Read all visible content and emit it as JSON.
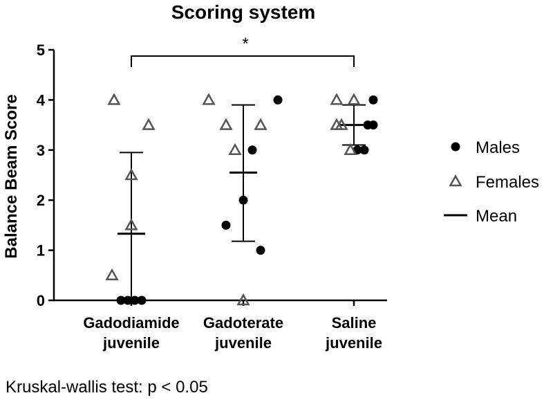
{
  "chart_data": {
    "type": "scatter",
    "title": "Scoring system",
    "ylabel": "Balance Beam Score",
    "ylim": [
      0,
      5
    ],
    "yticks": [
      "0",
      "1",
      "2",
      "3",
      "4",
      "5"
    ],
    "categories": [
      {
        "line1": "Gadodiamide",
        "line2": "juvenile"
      },
      {
        "line1": "Gadoterate",
        "line2": "juvenile"
      },
      {
        "line1": "Saline",
        "line2": "juvenile"
      }
    ],
    "series": [
      {
        "name": "Males",
        "marker": "circle",
        "color": "#000000",
        "points": [
          {
            "group": 0,
            "offset": -0.15,
            "y": 0
          },
          {
            "group": 0,
            "offset": -0.05,
            "y": 0
          },
          {
            "group": 0,
            "offset": 0.05,
            "y": 0
          },
          {
            "group": 0,
            "offset": 0.15,
            "y": 0
          },
          {
            "group": 1,
            "offset": -0.25,
            "y": 1.5
          },
          {
            "group": 1,
            "offset": 0.0,
            "y": 2
          },
          {
            "group": 1,
            "offset": 0.13,
            "y": 3
          },
          {
            "group": 1,
            "offset": 0.25,
            "y": 1
          },
          {
            "group": 1,
            "offset": 0.5,
            "y": 4
          },
          {
            "group": 2,
            "offset": 0.05,
            "y": 3
          },
          {
            "group": 2,
            "offset": 0.15,
            "y": 3
          },
          {
            "group": 2,
            "offset": 0.2,
            "y": 3.5
          },
          {
            "group": 2,
            "offset": 0.28,
            "y": 4
          },
          {
            "group": 2,
            "offset": 0.28,
            "y": 3.5
          }
        ]
      },
      {
        "name": "Females",
        "marker": "triangle",
        "color": "#555555",
        "points": [
          {
            "group": 0,
            "offset": -0.25,
            "y": 4
          },
          {
            "group": 0,
            "offset": 0.25,
            "y": 3.5
          },
          {
            "group": 0,
            "offset": 0.0,
            "y": 2.5
          },
          {
            "group": 0,
            "offset": 0.0,
            "y": 1.5
          },
          {
            "group": 0,
            "offset": -0.28,
            "y": 0.5
          },
          {
            "group": 1,
            "offset": -0.5,
            "y": 4
          },
          {
            "group": 1,
            "offset": -0.25,
            "y": 3.5
          },
          {
            "group": 1,
            "offset": -0.12,
            "y": 3
          },
          {
            "group": 1,
            "offset": 0.25,
            "y": 3.5
          },
          {
            "group": 1,
            "offset": 0.0,
            "y": 0
          },
          {
            "group": 2,
            "offset": -0.25,
            "y": 4
          },
          {
            "group": 2,
            "offset": 0.0,
            "y": 4
          },
          {
            "group": 2,
            "offset": -0.25,
            "y": 3.5
          },
          {
            "group": 2,
            "offset": -0.18,
            "y": 3.5
          },
          {
            "group": 2,
            "offset": -0.05,
            "y": 3
          }
        ]
      }
    ],
    "summary": [
      {
        "group": 0,
        "mean": 1.33,
        "lower": 0,
        "upper": 2.95
      },
      {
        "group": 1,
        "mean": 2.55,
        "lower": 1.18,
        "upper": 3.9
      },
      {
        "group": 2,
        "mean": 3.5,
        "lower": 3.1,
        "upper": 3.9
      }
    ],
    "legend": {
      "placement": "right",
      "entries": [
        {
          "label": "Males",
          "marker": "circle"
        },
        {
          "label": "Females",
          "marker": "triangle"
        },
        {
          "label": "Mean",
          "marker": "line"
        }
      ]
    },
    "significance": {
      "from_group": 0,
      "to_group": 2,
      "label": "*"
    },
    "footnote": "Kruskal-wallis test: p < 0.05"
  }
}
